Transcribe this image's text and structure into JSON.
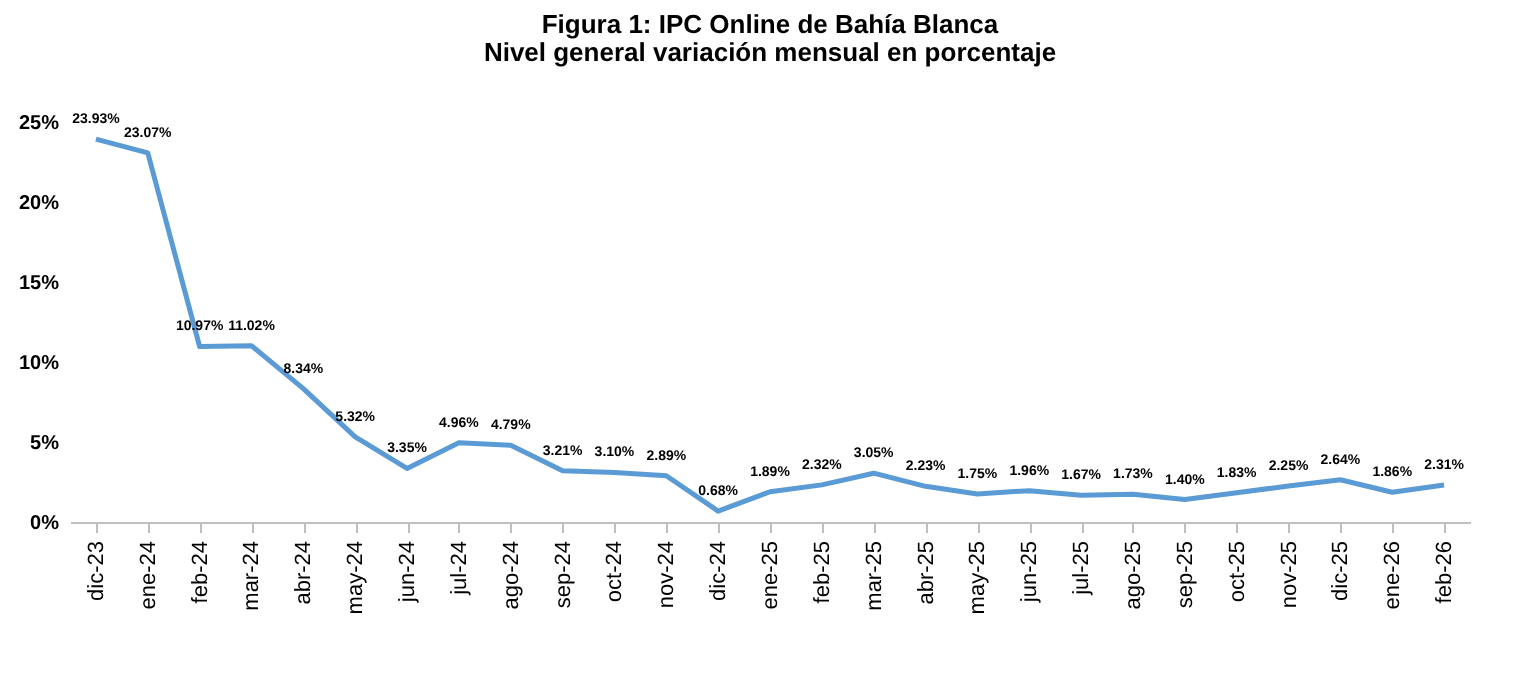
{
  "chart_data": {
    "type": "line",
    "title": "Figura 1: IPC Online de Bahía Blanca",
    "subtitle": "Nivel general variación mensual en porcentaje",
    "categories": [
      "dic-23",
      "ene-24",
      "feb-24",
      "mar-24",
      "abr-24",
      "may-24",
      "jun-24",
      "jul-24",
      "ago-24",
      "sep-24",
      "oct-24",
      "nov-24",
      "dic-24",
      "ene-25",
      "feb-25",
      "mar-25",
      "abr-25",
      "may-25",
      "jun-25",
      "jul-25",
      "ago-25",
      "sep-25",
      "oct-25",
      "nov-25",
      "dic-25",
      "ene-26",
      "feb-26"
    ],
    "series": [
      {
        "color": "#5b9bd5",
        "values": [
          23.93,
          23.07,
          10.97,
          11.02,
          8.34,
          5.32,
          3.35,
          4.96,
          4.79,
          3.21,
          3.1,
          2.89,
          0.68,
          1.89,
          2.32,
          3.05,
          2.23,
          1.75,
          1.96,
          1.67,
          1.73,
          1.4,
          1.83,
          2.25,
          2.64,
          1.86,
          2.31
        ],
        "value_labels": [
          "23.93%",
          "23.07%",
          "10.97%",
          "11.02%",
          "8.34%",
          "5.32%",
          "3.35%",
          "4.96%",
          "4.79%",
          "3.21%",
          "3.10%",
          "2.89%",
          "0.68%",
          "1.89%",
          "2.32%",
          "3.05%",
          "2.23%",
          "1.75%",
          "1.96%",
          "1.67%",
          "1.73%",
          "1.40%",
          "1.83%",
          "2.25%",
          "2.64%",
          "1.86%",
          "2.31%"
        ]
      }
    ],
    "ylim": [
      0,
      25
    ],
    "yticks": [
      {
        "value": 0,
        "label": "0%"
      },
      {
        "value": 5,
        "label": "5%"
      },
      {
        "value": 10,
        "label": "10%"
      },
      {
        "value": 15,
        "label": "15%"
      },
      {
        "value": 20,
        "label": "20%"
      },
      {
        "value": 25,
        "label": "25%"
      }
    ],
    "line_style": "solid"
  }
}
